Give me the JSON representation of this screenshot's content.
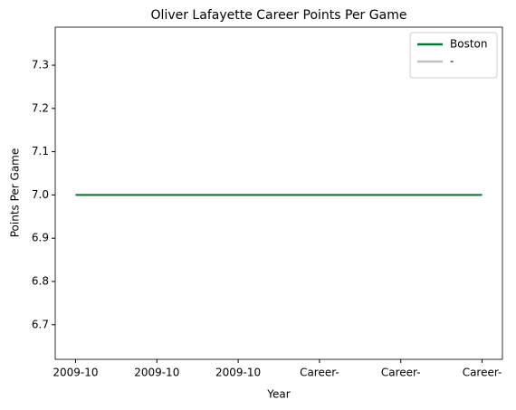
{
  "chart_data": {
    "type": "line",
    "title": "Oliver Lafayette Career Points Per Game",
    "xlabel": "Year",
    "ylabel": "Points Per Game",
    "categories": [
      "2009-10",
      "2009-10",
      "2009-10",
      "Career-",
      "Career-",
      "Career-"
    ],
    "series": [
      {
        "name": "Boston",
        "color": "#007a33",
        "values": [
          7.0,
          7.0,
          7.0,
          7.0,
          7.0,
          7.0
        ]
      },
      {
        "name": "-",
        "color": "#c0c0c0",
        "values": [
          7.0,
          7.0,
          7.0,
          7.0,
          7.0,
          7.0
        ]
      }
    ],
    "ylim": [
      6.62,
      7.388
    ],
    "yticks": [
      6.7,
      6.8,
      6.9,
      {
        "value": 7,
        "label": "7.0"
      },
      7.1,
      7.2,
      7.3
    ],
    "legend": "upper right",
    "grid": false
  }
}
